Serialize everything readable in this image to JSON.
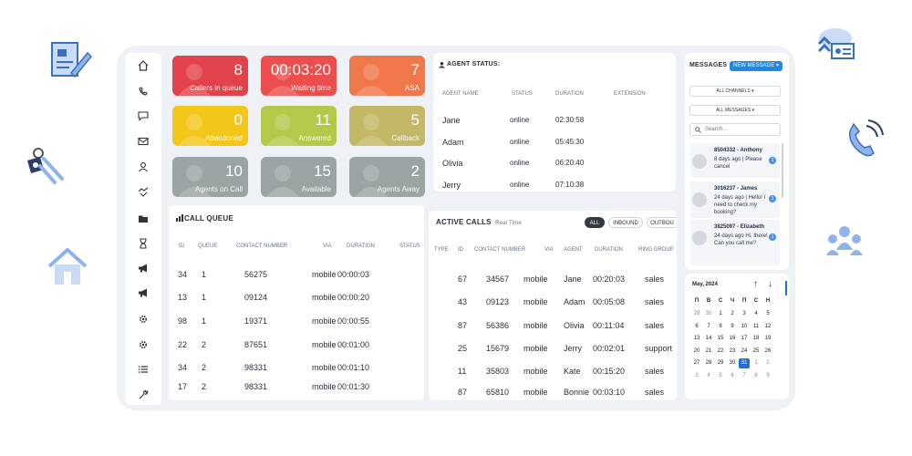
{
  "tiles": [
    {
      "value": "8",
      "label": "Callers in queue",
      "color": "#e2424a"
    },
    {
      "value": "00:03:20",
      "label": "Waiting time",
      "color": "#ec4d4d"
    },
    {
      "value": "7",
      "label": "ASA",
      "color": "#f0774a"
    },
    {
      "value": "0",
      "label": "Abandoned",
      "color": "#f3c61a"
    },
    {
      "value": "11",
      "label": "Answered",
      "color": "#b4c94a"
    },
    {
      "value": "5",
      "label": "Callback",
      "color": "#c2b865"
    },
    {
      "value": "10",
      "label": "Agents on Call",
      "color": "#9aa5a3"
    },
    {
      "value": "15",
      "label": "Available",
      "color": "#9aa5a3"
    },
    {
      "value": "2",
      "label": "Agents Away",
      "color": "#9aa5a3"
    }
  ],
  "agent_status": {
    "title": "AGENT STATUS:",
    "headers": [
      "AGENT NAME",
      "STATUS",
      "DURATION",
      "EXTENSION"
    ],
    "rows": [
      [
        "Jane",
        "online",
        "02:30:58"
      ],
      [
        "Adam",
        "online",
        "05:45:30"
      ],
      [
        "Olivia",
        "online",
        "06:20:40"
      ],
      [
        "Jerry",
        "online",
        "07:10:38"
      ]
    ]
  },
  "call_queue": {
    "title": "CALL QUEUE",
    "headers": [
      "ID",
      "QUEUE",
      "CONTACT NUMBER",
      "VIA",
      "DURATION",
      "STATUS"
    ],
    "rows": [
      [
        "34",
        "1",
        "56275",
        "mobile",
        "00:00:03"
      ],
      [
        "13",
        "1",
        "09124",
        "mobile",
        "00:00:20"
      ],
      [
        "98",
        "1",
        "19371",
        "mobile",
        "00:00:55"
      ],
      [
        "22",
        "2",
        "87651",
        "mobile",
        "00:01:00"
      ],
      [
        "34",
        "2",
        "98331",
        "mobile",
        "00:01:10"
      ],
      [
        "17",
        "2",
        "98331",
        "mobile",
        "00:01:30"
      ]
    ]
  },
  "active_calls": {
    "title": "ACTIVE CALLS",
    "subtitle": "Real Time",
    "filters": [
      "ALL",
      "INBOUND",
      "OUTBOU"
    ],
    "headers": [
      "TYPE",
      "ID",
      "CONTACT NUMBER",
      "VIA",
      "AGENT",
      "DURATION",
      "RING GROUP"
    ],
    "rows": [
      [
        "67",
        "34567",
        "mobile",
        "Jane",
        "00:20:03",
        "sales"
      ],
      [
        "43",
        "09123",
        "mobile",
        "Adam",
        "00:05:08",
        "sales"
      ],
      [
        "87",
        "56386",
        "mobile",
        "Olivia",
        "00:11:04",
        "sales"
      ],
      [
        "25",
        "15679",
        "mobile",
        "Jerry",
        "00:02:01",
        "support"
      ],
      [
        "11",
        "35803",
        "mobile",
        "Kate",
        "00:15:20",
        "sales"
      ],
      [
        "87",
        "65810",
        "mobile",
        "Bonnie",
        "00:03:10",
        "sales"
      ]
    ]
  },
  "messages": {
    "title": "MESSAGES",
    "new_button": "NEW MESSAGE ▾",
    "channels": "ALL CHANNELS ▾",
    "filter": "ALL MESSAGES ▾",
    "search_placeholder": "Search...",
    "items": [
      {
        "name": "8504332 - Anthony",
        "text": "8 days ago | Please cancel",
        "badge": "1"
      },
      {
        "name": "3016237 - James",
        "text": "24 days ago | Hello! I need to check my booking?",
        "badge": "1"
      },
      {
        "name": "3825097 - Elizabeth",
        "text": "24 days ago Hi, there! Can you call me?",
        "badge": "1"
      }
    ]
  },
  "calendar": {
    "month": "May, 2024",
    "weekdays": [
      "П",
      "В",
      "С",
      "Ч",
      "П",
      "С",
      "Н"
    ],
    "weeks": [
      [
        "29",
        "30",
        "1",
        "2",
        "3",
        "4",
        "5"
      ],
      [
        "6",
        "7",
        "8",
        "9",
        "10",
        "11",
        "12"
      ],
      [
        "13",
        "14",
        "15",
        "16",
        "17",
        "18",
        "19"
      ],
      [
        "20",
        "21",
        "22",
        "23",
        "24",
        "25",
        "26"
      ],
      [
        "27",
        "28",
        "29",
        "30",
        "31",
        "1",
        "2"
      ],
      [
        "3",
        "4",
        "5",
        "6",
        "7",
        "8",
        "9"
      ]
    ],
    "selected": "31"
  },
  "sidebar": [
    "home-icon",
    "phone-icon",
    "chat-icon",
    "mail-icon",
    "user-icon",
    "handshake-icon",
    "folder-icon",
    "hourglass-icon",
    "megaphone-icon",
    "megaphone-icon",
    "gear-icon",
    "gear-icon",
    "list-icon",
    "wrench-icon"
  ]
}
